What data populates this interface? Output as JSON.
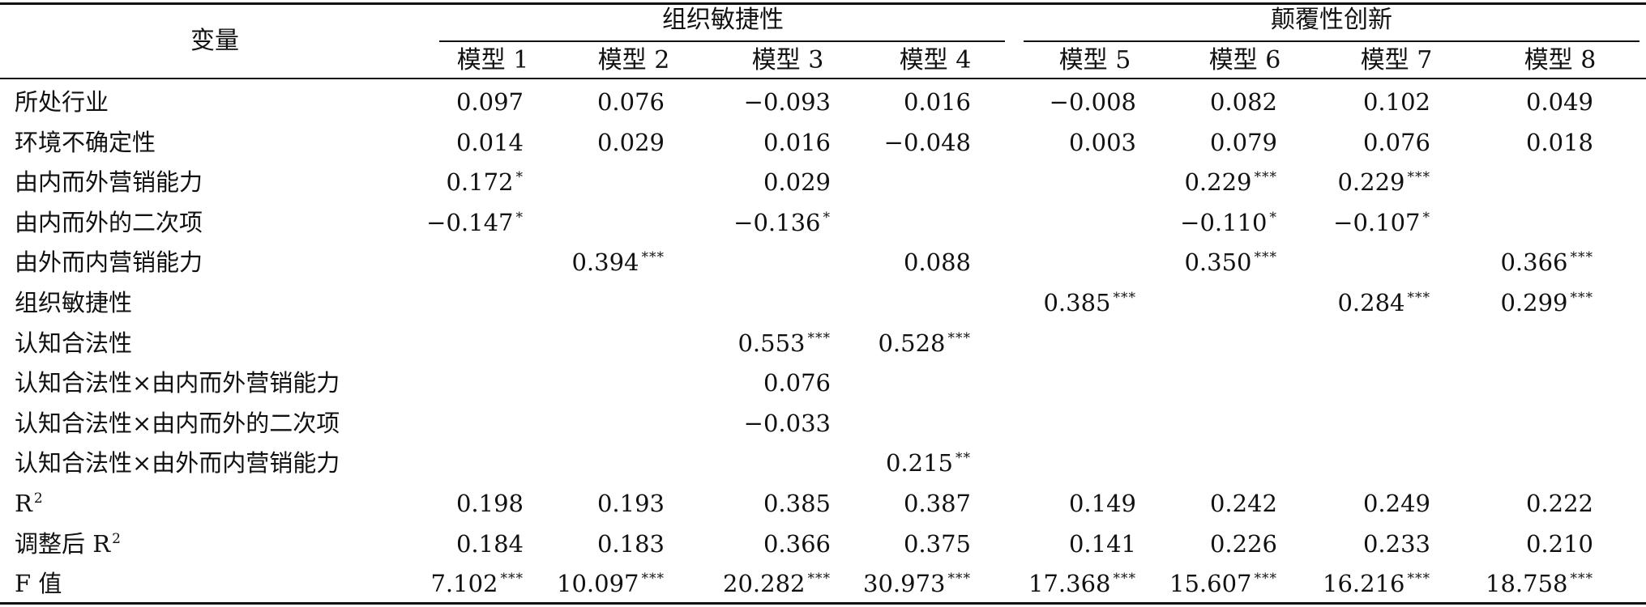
{
  "header": {
    "variable_label": "变量",
    "group_1": "组织敏捷性",
    "group_2": "颠覆性创新",
    "models": [
      "模型 1",
      "模型 2",
      "模型 3",
      "模型 4",
      "模型 5",
      "模型 6",
      "模型 7",
      "模型 8"
    ]
  },
  "rows": [
    {
      "label": "所处行业",
      "cells": [
        {
          "v": "0.097",
          "s": ""
        },
        {
          "v": "0.076",
          "s": ""
        },
        {
          "v": "−0.093",
          "s": ""
        },
        {
          "v": "0.016",
          "s": ""
        },
        {
          "v": "−0.008",
          "s": ""
        },
        {
          "v": "0.082",
          "s": ""
        },
        {
          "v": "0.102",
          "s": ""
        },
        {
          "v": "0.049",
          "s": ""
        }
      ]
    },
    {
      "label": "环境不确定性",
      "cells": [
        {
          "v": "0.014",
          "s": ""
        },
        {
          "v": "0.029",
          "s": ""
        },
        {
          "v": "0.016",
          "s": ""
        },
        {
          "v": "−0.048",
          "s": ""
        },
        {
          "v": "0.003",
          "s": ""
        },
        {
          "v": "0.079",
          "s": ""
        },
        {
          "v": "0.076",
          "s": ""
        },
        {
          "v": "0.018",
          "s": ""
        }
      ]
    },
    {
      "label": "由内而外营销能力",
      "cells": [
        {
          "v": "0.172",
          "s": "*"
        },
        {
          "v": "",
          "s": ""
        },
        {
          "v": "0.029",
          "s": ""
        },
        {
          "v": "",
          "s": ""
        },
        {
          "v": "",
          "s": ""
        },
        {
          "v": "0.229",
          "s": "***"
        },
        {
          "v": "0.229",
          "s": "***"
        },
        {
          "v": "",
          "s": ""
        }
      ]
    },
    {
      "label": "由内而外的二次项",
      "cells": [
        {
          "v": "−0.147",
          "s": "*"
        },
        {
          "v": "",
          "s": ""
        },
        {
          "v": "−0.136",
          "s": "*"
        },
        {
          "v": "",
          "s": ""
        },
        {
          "v": "",
          "s": ""
        },
        {
          "v": "−0.110",
          "s": "*"
        },
        {
          "v": "−0.107",
          "s": "*"
        },
        {
          "v": "",
          "s": ""
        }
      ]
    },
    {
      "label": "由外而内营销能力",
      "cells": [
        {
          "v": "",
          "s": ""
        },
        {
          "v": "0.394",
          "s": "***"
        },
        {
          "v": "",
          "s": ""
        },
        {
          "v": "0.088",
          "s": ""
        },
        {
          "v": "",
          "s": ""
        },
        {
          "v": "0.350",
          "s": "***"
        },
        {
          "v": "",
          "s": ""
        },
        {
          "v": "0.366",
          "s": "***"
        }
      ]
    },
    {
      "label": "组织敏捷性",
      "cells": [
        {
          "v": "",
          "s": ""
        },
        {
          "v": "",
          "s": ""
        },
        {
          "v": "",
          "s": ""
        },
        {
          "v": "",
          "s": ""
        },
        {
          "v": "0.385",
          "s": "***"
        },
        {
          "v": "",
          "s": ""
        },
        {
          "v": "0.284",
          "s": "***"
        },
        {
          "v": "0.299",
          "s": "***"
        }
      ]
    },
    {
      "label": "认知合法性",
      "cells": [
        {
          "v": "",
          "s": ""
        },
        {
          "v": "",
          "s": ""
        },
        {
          "v": "0.553",
          "s": "***"
        },
        {
          "v": "0.528",
          "s": "***"
        },
        {
          "v": "",
          "s": ""
        },
        {
          "v": "",
          "s": ""
        },
        {
          "v": "",
          "s": ""
        },
        {
          "v": "",
          "s": ""
        }
      ]
    },
    {
      "label": "认知合法性×由内而外营销能力",
      "cells": [
        {
          "v": "",
          "s": ""
        },
        {
          "v": "",
          "s": ""
        },
        {
          "v": "0.076",
          "s": ""
        },
        {
          "v": "",
          "s": ""
        },
        {
          "v": "",
          "s": ""
        },
        {
          "v": "",
          "s": ""
        },
        {
          "v": "",
          "s": ""
        },
        {
          "v": "",
          "s": ""
        }
      ]
    },
    {
      "label": "认知合法性×由内而外的二次项",
      "cells": [
        {
          "v": "",
          "s": ""
        },
        {
          "v": "",
          "s": ""
        },
        {
          "v": "−0.033",
          "s": ""
        },
        {
          "v": "",
          "s": ""
        },
        {
          "v": "",
          "s": ""
        },
        {
          "v": "",
          "s": ""
        },
        {
          "v": "",
          "s": ""
        },
        {
          "v": "",
          "s": ""
        }
      ]
    },
    {
      "label": "认知合法性×由外而内营销能力",
      "cells": [
        {
          "v": "",
          "s": ""
        },
        {
          "v": "",
          "s": ""
        },
        {
          "v": "",
          "s": ""
        },
        {
          "v": "0.215",
          "s": "**"
        },
        {
          "v": "",
          "s": ""
        },
        {
          "v": "",
          "s": ""
        },
        {
          "v": "",
          "s": ""
        },
        {
          "v": "",
          "s": ""
        }
      ]
    },
    {
      "label": "R",
      "label_sup": "2",
      "cells": [
        {
          "v": "0.198",
          "s": ""
        },
        {
          "v": "0.193",
          "s": ""
        },
        {
          "v": "0.385",
          "s": ""
        },
        {
          "v": "0.387",
          "s": ""
        },
        {
          "v": "0.149",
          "s": ""
        },
        {
          "v": "0.242",
          "s": ""
        },
        {
          "v": "0.249",
          "s": ""
        },
        {
          "v": "0.222",
          "s": ""
        }
      ]
    },
    {
      "label": "调整后 R",
      "label_sup": "2",
      "cells": [
        {
          "v": "0.184",
          "s": ""
        },
        {
          "v": "0.183",
          "s": ""
        },
        {
          "v": "0.366",
          "s": ""
        },
        {
          "v": "0.375",
          "s": ""
        },
        {
          "v": "0.141",
          "s": ""
        },
        {
          "v": "0.226",
          "s": ""
        },
        {
          "v": "0.233",
          "s": ""
        },
        {
          "v": "0.210",
          "s": ""
        }
      ]
    },
    {
      "label": "F 值",
      "cells": [
        {
          "v": "7.102",
          "s": "***"
        },
        {
          "v": "10.097",
          "s": "***"
        },
        {
          "v": "20.282",
          "s": "***"
        },
        {
          "v": "30.973",
          "s": "***"
        },
        {
          "v": "17.368",
          "s": "***"
        },
        {
          "v": "15.607",
          "s": "***"
        },
        {
          "v": "16.216",
          "s": "***"
        },
        {
          "v": "18.758",
          "s": "***"
        }
      ]
    }
  ]
}
